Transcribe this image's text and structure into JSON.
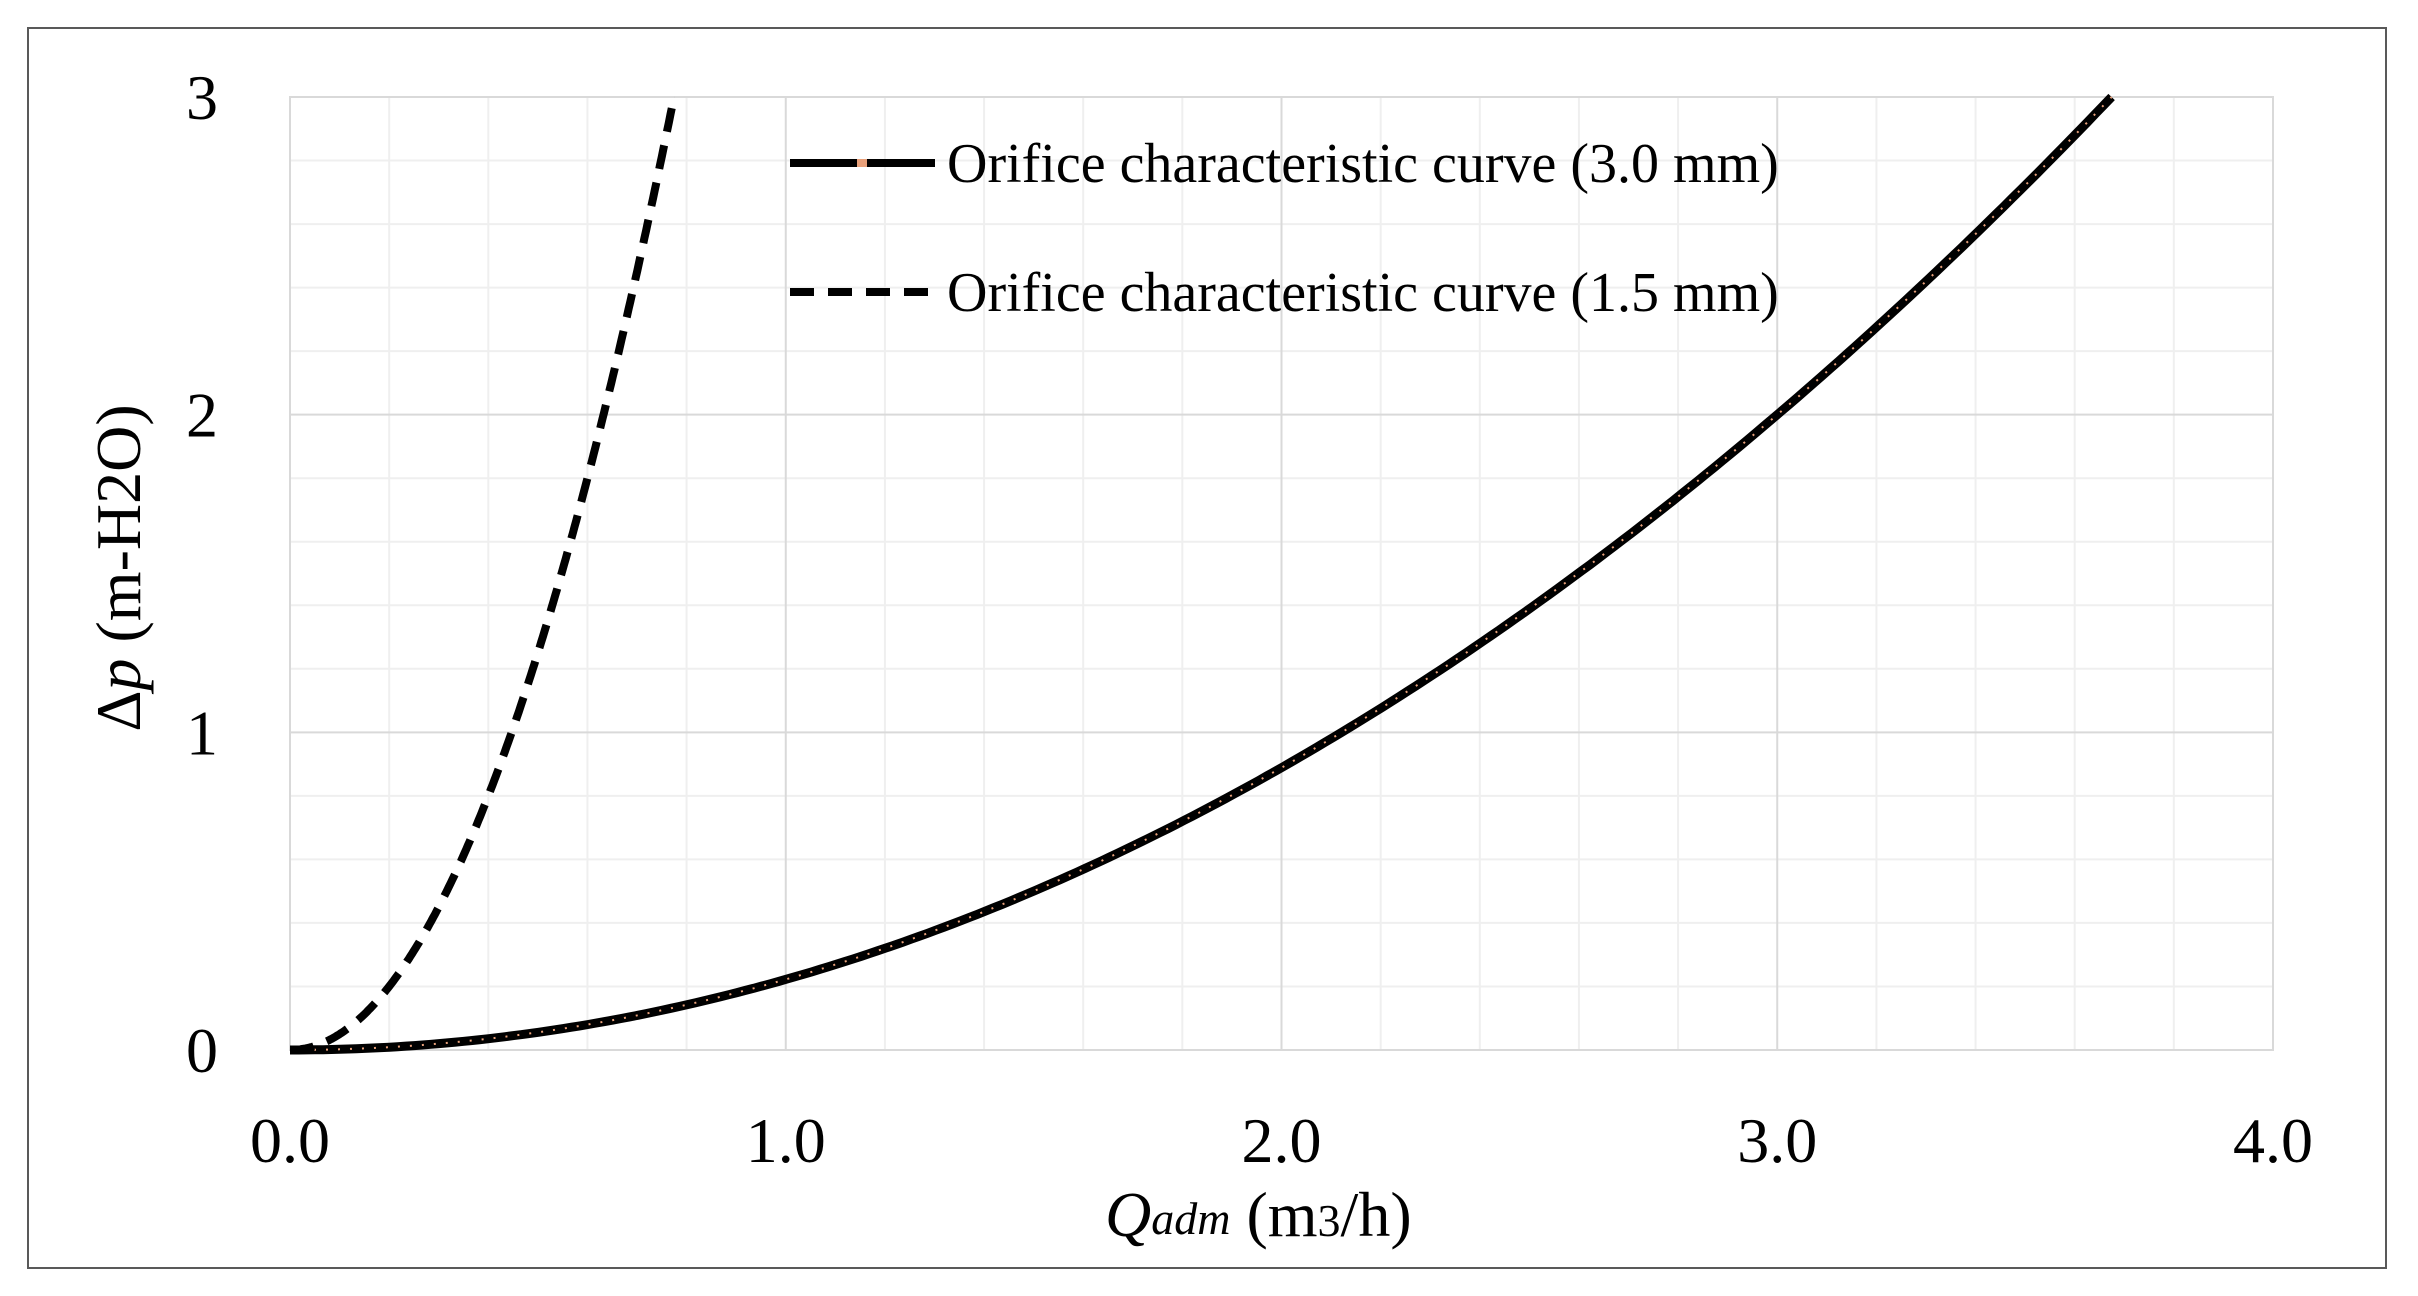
{
  "chart_data": {
    "type": "line",
    "title": "",
    "xlim": [
      0,
      4.0
    ],
    "ylim": [
      0,
      3
    ],
    "x_ticks": [
      "0.0",
      "1.0",
      "2.0",
      "3.0",
      "4.0"
    ],
    "y_ticks": [
      "0",
      "1",
      "2",
      "3"
    ],
    "x_tick_values": [
      0,
      1,
      2,
      3,
      4
    ],
    "y_tick_values": [
      0,
      1,
      2,
      3
    ],
    "xlabel": {
      "symbol": "Q",
      "subscript": "adm",
      "unit_pre": " (m",
      "unit_sup": "3",
      "unit_post": "/h)"
    },
    "ylabel": {
      "symbol_delta": "Δ",
      "symbol": "p",
      "unit": " (m-H2O)"
    },
    "grid": {
      "major": true,
      "minor": true,
      "x_minor_step": 0.2,
      "y_minor_step": 0.2
    },
    "legend_position": "top-center",
    "series": [
      {
        "name": "Orifice characteristic curve (3.0 mm)",
        "style": "solid",
        "color": "#000000",
        "marker_color": "#e8a07a",
        "k": 0.2222,
        "x": [
          0,
          0.25,
          0.5,
          0.75,
          1.0,
          1.25,
          1.5,
          1.75,
          2.0,
          2.25,
          2.5,
          2.75,
          3.0,
          3.25,
          3.5,
          3.67
        ],
        "y": [
          0,
          0.014,
          0.056,
          0.125,
          0.222,
          0.347,
          0.5,
          0.681,
          0.889,
          1.125,
          1.389,
          1.681,
          2.0,
          2.347,
          2.722,
          3.0
        ]
      },
      {
        "name": "Orifice characteristic curve (1.5 mm)",
        "style": "dashed",
        "color": "#000000",
        "k": 5.0,
        "x": [
          0,
          0.1,
          0.2,
          0.3,
          0.4,
          0.5,
          0.6,
          0.7,
          0.775
        ],
        "y": [
          0,
          0.05,
          0.2,
          0.45,
          0.8,
          1.25,
          1.8,
          2.45,
          3.0
        ]
      }
    ]
  }
}
